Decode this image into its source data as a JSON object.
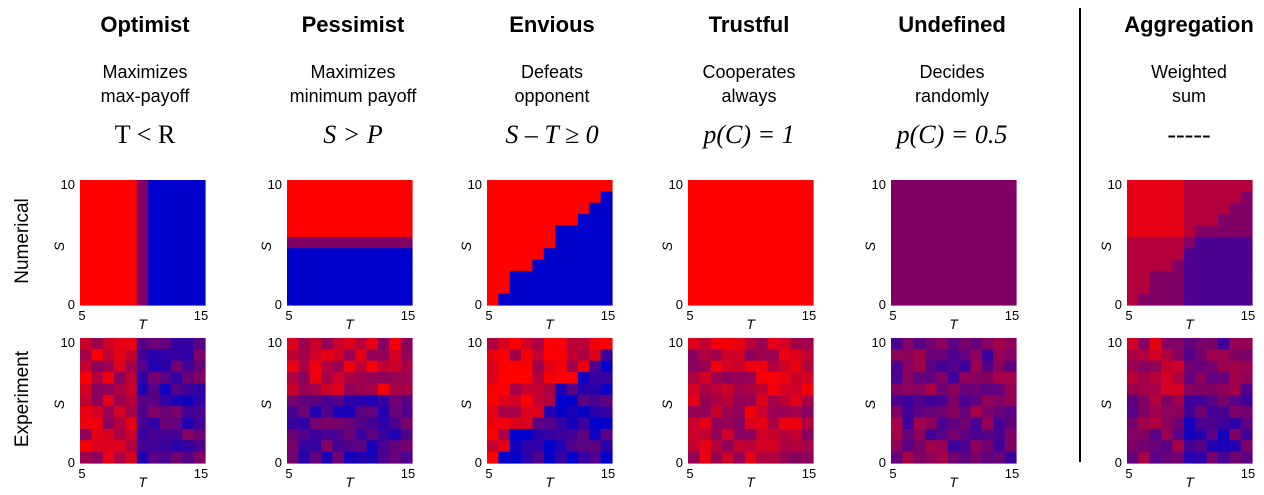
{
  "row_labels": {
    "numerical": "Numerical",
    "experiment": "Experiment"
  },
  "axes": {
    "x_label": "T",
    "y_label": "S",
    "x_ticks": [
      "5",
      "15"
    ],
    "y_ticks": [
      "0",
      "10"
    ]
  },
  "colors": {
    "red": "#ff0000",
    "blue": "#0000cc",
    "purple": "#7f0066",
    "divider": "#000000"
  },
  "columns": [
    {
      "title": "Optimist",
      "desc_line1": "Maximizes",
      "desc_line2": "max-payoff",
      "formula": "T < R",
      "formula_italic": false
    },
    {
      "title": "Pessimist",
      "desc_line1": "Maximizes",
      "desc_line2": "minimum payoff",
      "formula": "S > P",
      "formula_italic": true
    },
    {
      "title": "Envious",
      "desc_line1": "Defeats",
      "desc_line2": "opponent",
      "formula": "S – T ≥ 0",
      "formula_italic": true
    },
    {
      "title": "Trustful",
      "desc_line1": "Cooperates",
      "desc_line2": "always",
      "formula": "p(C) = 1",
      "formula_italic": true
    },
    {
      "title": "Undefined",
      "desc_line1": "Decides",
      "desc_line2": "randomly",
      "formula": "p(C) = 0.5",
      "formula_italic": true
    },
    {
      "title": "Aggregation",
      "desc_line1": "Weighted",
      "desc_line2": "sum",
      "formula": "-----",
      "formula_italic": false
    }
  ],
  "chart_data": [
    {
      "type": "heatmap",
      "panel": "Optimist numerical",
      "x_range": [
        5,
        15
      ],
      "y_range": [
        0,
        10
      ],
      "xlabel": "T",
      "ylabel": "S",
      "description_of_values": "p(C)=1 for T<10, 0.5 at T=10, 0 for T>10"
    },
    {
      "type": "heatmap",
      "panel": "Pessimist numerical",
      "x_range": [
        5,
        15
      ],
      "y_range": [
        0,
        10
      ],
      "xlabel": "T",
      "ylabel": "S",
      "description_of_values": "p(C)=1 for S>5, 0.5 at S=5, 0 for S<5"
    },
    {
      "type": "heatmap",
      "panel": "Envious numerical",
      "x_range": [
        5,
        15
      ],
      "y_range": [
        0,
        10
      ],
      "xlabel": "T",
      "ylabel": "S",
      "description_of_values": "p(C)=1 for S-T>=0, 0 otherwise"
    },
    {
      "type": "heatmap",
      "panel": "Trustful numerical",
      "x_range": [
        5,
        15
      ],
      "y_range": [
        0,
        10
      ],
      "xlabel": "T",
      "ylabel": "S",
      "value": 1
    },
    {
      "type": "heatmap",
      "panel": "Undefined numerical",
      "x_range": [
        5,
        15
      ],
      "y_range": [
        0,
        10
      ],
      "xlabel": "T",
      "ylabel": "S",
      "value": 0.5
    },
    {
      "type": "heatmap",
      "panel": "Aggregation numerical",
      "x_range": [
        5,
        15
      ],
      "y_range": [
        0,
        10
      ],
      "xlabel": "T",
      "ylabel": "S"
    },
    {
      "type": "heatmap",
      "panel": "Optimist experiment",
      "x_range": [
        5,
        15
      ],
      "y_range": [
        0,
        10
      ],
      "xlabel": "T",
      "ylabel": "S"
    },
    {
      "type": "heatmap",
      "panel": "Pessimist experiment",
      "x_range": [
        5,
        15
      ],
      "y_range": [
        0,
        10
      ],
      "xlabel": "T",
      "ylabel": "S"
    },
    {
      "type": "heatmap",
      "panel": "Envious experiment",
      "x_range": [
        5,
        15
      ],
      "y_range": [
        0,
        10
      ],
      "xlabel": "T",
      "ylabel": "S"
    },
    {
      "type": "heatmap",
      "panel": "Trustful experiment",
      "x_range": [
        5,
        15
      ],
      "y_range": [
        0,
        10
      ],
      "xlabel": "T",
      "ylabel": "S"
    },
    {
      "type": "heatmap",
      "panel": "Undefined experiment",
      "x_range": [
        5,
        15
      ],
      "y_range": [
        0,
        10
      ],
      "xlabel": "T",
      "ylabel": "S"
    },
    {
      "type": "heatmap",
      "panel": "Aggregation experiment",
      "x_range": [
        5,
        15
      ],
      "y_range": [
        0,
        10
      ],
      "xlabel": "T",
      "ylabel": "S"
    }
  ]
}
